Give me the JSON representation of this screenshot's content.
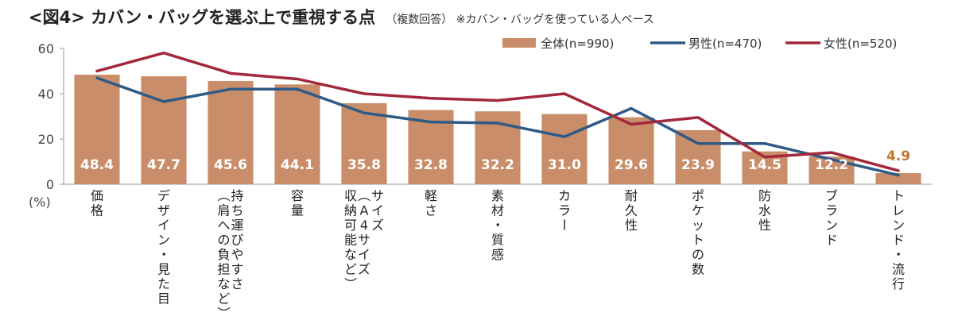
{
  "header": {
    "title": "<図4> カバン・バッグを選ぶ上で重視する点",
    "subtitle": "（複数回答） ※カバン・バッグを使っている人ベース"
  },
  "chart_data": {
    "type": "bar",
    "title": "<図4> カバン・バッグを選ぶ上で重視する点",
    "subtitle": "（複数回答） ※カバン・バッグを使っている人ベース",
    "ylabel": "(%)",
    "ylim": [
      0,
      60
    ],
    "yticks": [
      0,
      20,
      40,
      60
    ],
    "legend_position": "top-right",
    "categories": [
      "価格",
      "デザイン・見た目",
      "持ち運びやすさ（肩への負担など）",
      "容量",
      "サイズ（A4サイズ収納可能など）",
      "軽さ",
      "素材・質感",
      "カラー",
      "耐久性",
      "ポケットの数",
      "防水性",
      "ブランド",
      "トレンド・流行"
    ],
    "category_lines": [
      [
        "価格"
      ],
      [
        "デザイン・見た目"
      ],
      [
        "持ち運びやすさ",
        "（肩への負担など）"
      ],
      [
        "容量"
      ],
      [
        "サイズ",
        "（A4サイズ",
        "収納可能など）"
      ],
      [
        "軽さ"
      ],
      [
        "素材・質感"
      ],
      [
        "カラー"
      ],
      [
        "耐久性"
      ],
      [
        "ポケットの数"
      ],
      [
        "防水性"
      ],
      [
        "ブランド"
      ],
      [
        "トレンド・流行"
      ]
    ],
    "series": [
      {
        "name": "全体(n=990)",
        "type": "bar",
        "color": "#c98e69",
        "values": [
          48.4,
          47.7,
          45.6,
          44.1,
          35.8,
          32.8,
          32.2,
          31.0,
          29.6,
          23.9,
          14.5,
          12.2,
          4.9
        ]
      },
      {
        "name": "男性(n=470)",
        "type": "line",
        "color": "#2f5a86",
        "values": [
          47,
          36.5,
          42,
          42,
          31.5,
          27.5,
          27,
          21,
          33.5,
          18,
          18,
          11,
          4
        ]
      },
      {
        "name": "女性(n=520)",
        "type": "line",
        "color": "#a3283b",
        "values": [
          50,
          58,
          49,
          46.5,
          40,
          38,
          37,
          40,
          26.5,
          29.5,
          12,
          14,
          6
        ]
      }
    ],
    "bar_labels": [
      "48.4",
      "47.7",
      "45.6",
      "44.1",
      "35.8",
      "32.8",
      "32.2",
      "31.0",
      "29.6",
      "23.9",
      "14.5",
      "12.2",
      "4.9"
    ],
    "outside_label_color": "#c07830"
  }
}
